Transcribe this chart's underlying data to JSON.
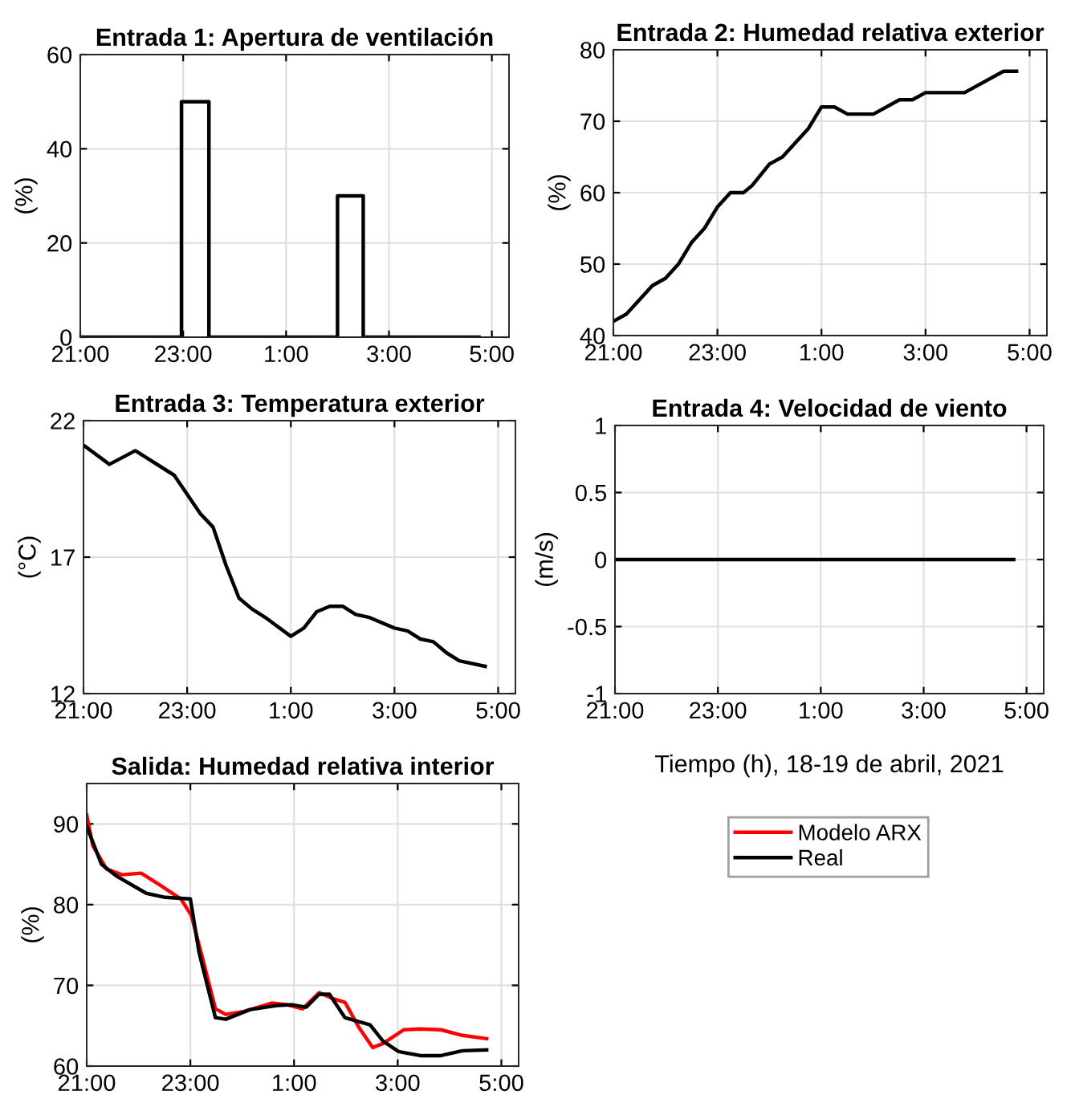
{
  "chart_data": [
    {
      "type": "line",
      "title": "Entrada 1: Apertura de ventilación",
      "ylabel": "(%)",
      "xlim": [
        "2021-04-18T21:00",
        "2021-04-19T05:20"
      ],
      "ylim": [
        0,
        60
      ],
      "yticks": [
        0,
        20,
        40,
        60
      ],
      "xticks": [
        {
          "value": "2021-04-18T21:00",
          "label": "21:00"
        },
        {
          "value": "2021-04-18T23:00",
          "label": "23:00"
        },
        {
          "value": "2021-04-19T01:00",
          "label": "1:00"
        },
        {
          "value": "2021-04-19T03:00",
          "label": "3:00"
        },
        {
          "value": "2021-04-19T05:00",
          "label": "5:00"
        }
      ],
      "grid": true,
      "series": [
        {
          "color": "#000000",
          "x": [
            "2021-04-18T21:00",
            "2021-04-18T22:58",
            "2021-04-18T22:58",
            "2021-04-18T23:30",
            "2021-04-18T23:30",
            "2021-04-19T02:00",
            "2021-04-19T02:00",
            "2021-04-19T02:30",
            "2021-04-19T02:30",
            "2021-04-19T04:45"
          ],
          "values": [
            0,
            0,
            50,
            50,
            0,
            0,
            30,
            30,
            0,
            0
          ]
        }
      ]
    },
    {
      "type": "line",
      "title": "Entrada 2: Humedad relativa exterior",
      "ylabel": "(%)",
      "xlim": [
        "2021-04-18T21:00",
        "2021-04-19T05:20"
      ],
      "ylim": [
        40,
        80
      ],
      "yticks": [
        40,
        50,
        60,
        70,
        80
      ],
      "xticks": [
        {
          "value": "2021-04-18T21:00",
          "label": "21:00"
        },
        {
          "value": "2021-04-18T23:00",
          "label": "23:00"
        },
        {
          "value": "2021-04-19T01:00",
          "label": "1:00"
        },
        {
          "value": "2021-04-19T03:00",
          "label": "3:00"
        },
        {
          "value": "2021-04-19T05:00",
          "label": "5:00"
        }
      ],
      "grid": true,
      "series": [
        {
          "color": "#000000",
          "x": [
            "2021-04-18T21:00",
            "2021-04-18T21:15",
            "2021-04-18T21:45",
            "2021-04-18T22:00",
            "2021-04-18T22:15",
            "2021-04-18T22:30",
            "2021-04-18T22:45",
            "2021-04-18T23:00",
            "2021-04-18T23:15",
            "2021-04-18T23:30",
            "2021-04-18T23:40",
            "2021-04-19T00:00",
            "2021-04-19T00:15",
            "2021-04-19T00:45",
            "2021-04-19T01:00",
            "2021-04-19T01:15",
            "2021-04-19T01:30",
            "2021-04-19T02:00",
            "2021-04-19T02:30",
            "2021-04-19T02:45",
            "2021-04-19T03:00",
            "2021-04-19T03:45",
            "2021-04-19T04:30",
            "2021-04-19T04:45"
          ],
          "values": [
            42,
            43,
            47,
            48,
            50,
            53,
            55,
            58,
            60,
            60,
            61,
            64,
            65,
            69,
            72,
            72,
            71,
            71,
            73,
            73,
            74,
            74,
            77,
            77
          ]
        }
      ]
    },
    {
      "type": "line",
      "title": "Entrada 3: Temperatura exterior",
      "ylabel": "(°C)",
      "xlim": [
        "2021-04-18T21:00",
        "2021-04-19T05:20"
      ],
      "ylim": [
        12,
        22
      ],
      "yticks": [
        12,
        17,
        22
      ],
      "xticks": [
        {
          "value": "2021-04-18T21:00",
          "label": "21:00"
        },
        {
          "value": "2021-04-18T23:00",
          "label": "23:00"
        },
        {
          "value": "2021-04-19T01:00",
          "label": "1:00"
        },
        {
          "value": "2021-04-19T03:00",
          "label": "3:00"
        },
        {
          "value": "2021-04-19T05:00",
          "label": "5:00"
        }
      ],
      "grid": true,
      "series": [
        {
          "color": "#000000",
          "x": [
            "2021-04-18T21:00",
            "2021-04-18T21:30",
            "2021-04-18T22:00",
            "2021-04-18T22:45",
            "2021-04-18T23:15",
            "2021-04-18T23:30",
            "2021-04-18T23:45",
            "2021-04-19T00:00",
            "2021-04-19T00:15",
            "2021-04-19T00:30",
            "2021-04-19T01:00",
            "2021-04-19T01:15",
            "2021-04-19T01:30",
            "2021-04-19T01:45",
            "2021-04-19T02:00",
            "2021-04-19T02:15",
            "2021-04-19T02:30",
            "2021-04-19T03:00",
            "2021-04-19T03:15",
            "2021-04-19T03:30",
            "2021-04-19T03:45",
            "2021-04-19T04:00",
            "2021-04-19T04:15",
            "2021-04-19T04:45"
          ],
          "values": [
            21.1,
            20.4,
            20.9,
            20.0,
            18.6,
            18.1,
            16.7,
            15.5,
            15.1,
            14.8,
            14.1,
            14.4,
            15.0,
            15.2,
            15.2,
            14.9,
            14.8,
            14.4,
            14.3,
            14.0,
            13.9,
            13.5,
            13.2,
            13.0
          ]
        }
      ]
    },
    {
      "type": "line",
      "title": "Entrada 4: Velocidad de viento",
      "ylabel": "(m/s)",
      "xlabel": "Tiempo (h), 18-19 de abril, 2021",
      "xlim": [
        "2021-04-18T21:00",
        "2021-04-19T05:20"
      ],
      "ylim": [
        -1,
        1
      ],
      "yticks": [
        -1,
        -0.5,
        0,
        0.5,
        1
      ],
      "xticks": [
        {
          "value": "2021-04-18T21:00",
          "label": "21:00"
        },
        {
          "value": "2021-04-18T23:00",
          "label": "23:00"
        },
        {
          "value": "2021-04-19T01:00",
          "label": "1:00"
        },
        {
          "value": "2021-04-19T03:00",
          "label": "3:00"
        },
        {
          "value": "2021-04-19T05:00",
          "label": "5:00"
        }
      ],
      "grid": true,
      "series": [
        {
          "color": "#000000",
          "x": [
            "2021-04-18T21:00",
            "2021-04-19T04:45"
          ],
          "values": [
            0,
            0
          ]
        }
      ]
    },
    {
      "type": "line",
      "title": "Salida: Humedad relativa interior",
      "ylabel": "(%)",
      "xlim": [
        "2021-04-18T21:00",
        "2021-04-19T05:20"
      ],
      "ylim": [
        60,
        95
      ],
      "yticks": [
        60,
        70,
        80,
        90
      ],
      "xticks": [
        {
          "value": "2021-04-18T21:00",
          "label": "21:00"
        },
        {
          "value": "2021-04-18T23:00",
          "label": "23:00"
        },
        {
          "value": "2021-04-19T01:00",
          "label": "1:00"
        },
        {
          "value": "2021-04-19T03:00",
          "label": "3:00"
        },
        {
          "value": "2021-04-19T05:00",
          "label": "5:00"
        }
      ],
      "grid": true,
      "legend": "right",
      "series": [
        {
          "name": "Modelo ARX",
          "color": "#ff0000",
          "x": [
            "2021-04-18T21:00",
            "2021-04-18T21:07",
            "2021-04-18T21:23",
            "2021-04-18T21:41",
            "2021-04-18T22:03",
            "2021-04-18T22:25",
            "2021-04-18T22:49",
            "2021-04-18T23:01",
            "2021-04-18T23:14",
            "2021-04-18T23:29",
            "2021-04-18T23:41",
            "2021-04-19T00:03",
            "2021-04-19T00:34",
            "2021-04-19T00:52",
            "2021-04-19T01:10",
            "2021-04-19T01:29",
            "2021-04-19T01:44",
            "2021-04-19T01:59",
            "2021-04-19T02:15",
            "2021-04-19T02:31",
            "2021-04-19T02:43",
            "2021-04-19T03:07",
            "2021-04-19T03:26",
            "2021-04-19T03:50",
            "2021-04-19T04:15",
            "2021-04-19T04:43"
          ],
          "values": [
            91.1,
            87.3,
            84.4,
            83.7,
            83.9,
            82.4,
            80.7,
            78.7,
            73.4,
            67.1,
            66.4,
            66.8,
            67.8,
            67.6,
            67.1,
            69.1,
            68.4,
            67.9,
            64.8,
            62.3,
            62.8,
            64.5,
            64.6,
            64.5,
            63.8,
            63.4
          ]
        },
        {
          "name": "Real",
          "color": "#000000",
          "x": [
            "2021-04-18T21:00",
            "2021-04-18T21:17",
            "2021-04-18T21:35",
            "2021-04-18T22:09",
            "2021-04-18T22:31",
            "2021-04-18T23:00",
            "2021-04-18T23:10",
            "2021-04-18T23:29",
            "2021-04-18T23:41",
            "2021-04-19T00:09",
            "2021-04-19T00:40",
            "2021-04-19T00:58",
            "2021-04-19T01:14",
            "2021-04-19T01:29",
            "2021-04-19T01:41",
            "2021-04-19T01:59",
            "2021-04-19T02:28",
            "2021-04-19T02:43",
            "2021-04-19T03:01",
            "2021-04-19T03:26",
            "2021-04-19T03:50",
            "2021-04-19T04:15",
            "2021-04-19T04:43"
          ],
          "values": [
            89.7,
            85.0,
            83.5,
            81.4,
            80.9,
            80.7,
            74.1,
            66.0,
            65.8,
            67.0,
            67.5,
            67.6,
            67.3,
            68.9,
            68.9,
            66.0,
            65.1,
            63.1,
            61.8,
            61.3,
            61.3,
            61.9,
            62.0
          ]
        }
      ]
    }
  ]
}
